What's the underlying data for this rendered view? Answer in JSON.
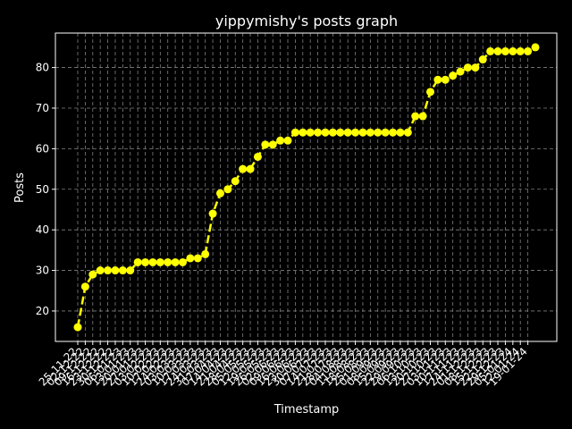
{
  "chart_data": {
    "type": "line",
    "title": "yippymishy's posts graph",
    "xlabel": "Timestamp",
    "ylabel": "Posts",
    "ylim": [
      12.5,
      88.5
    ],
    "yticks": [
      20,
      30,
      40,
      50,
      60,
      70,
      80
    ],
    "grid": true,
    "style": {
      "background": "#000000",
      "line_color": "#ffff00",
      "grid_color": "#808080",
      "axis_color": "#ffffff",
      "line_style": "dashed",
      "marker": "circle"
    },
    "x_tick_labels": [
      "25-11-22",
      "02-12-22",
      "09-12-22",
      "16-12-22",
      "23-12-22",
      "30-12-22",
      "06-01-23",
      "13-01-23",
      "20-01-23",
      "27-01-23",
      "03-02-23",
      "10-02-23",
      "17-02-23",
      "24-02-23",
      "03-03-23",
      "10-03-23",
      "17-03-23",
      "24-03-23",
      "31-03-23",
      "07-04-23",
      "14-04-23",
      "21-04-23",
      "28-04-23",
      "05-05-23",
      "12-05-23",
      "19-05-23",
      "26-05-23",
      "02-06-23",
      "09-06-23",
      "16-06-23",
      "23-06-23",
      "30-06-23",
      "07-07-23",
      "14-07-23",
      "21-07-23",
      "28-07-23",
      "04-08-23",
      "11-08-23",
      "18-08-23",
      "25-08-23",
      "01-09-23",
      "08-09-23",
      "15-09-23",
      "22-09-23",
      "29-09-23",
      "06-10-23",
      "13-10-23",
      "20-10-23",
      "27-10-23",
      "03-11-23",
      "10-11-23",
      "17-11-23",
      "24-11-23",
      "01-12-23",
      "08-12-23",
      "15-12-23",
      "22-12-23",
      "29-12-23",
      "05-01-24",
      "12-01-24",
      "19-01-24"
    ],
    "series": [
      {
        "values": [
          16,
          26,
          29,
          30,
          30,
          30,
          30,
          30,
          32,
          32,
          32,
          32,
          32,
          32,
          32,
          33,
          33,
          34,
          44,
          49,
          50,
          52,
          55,
          55,
          58,
          61,
          61,
          62,
          62,
          64,
          64,
          64,
          64,
          64,
          64,
          64,
          64,
          64,
          64,
          64,
          64,
          64,
          64,
          64,
          64,
          68,
          68,
          74,
          77,
          77,
          78,
          79,
          80,
          80,
          82,
          84,
          84,
          84,
          84,
          84,
          84,
          85
        ]
      }
    ]
  }
}
